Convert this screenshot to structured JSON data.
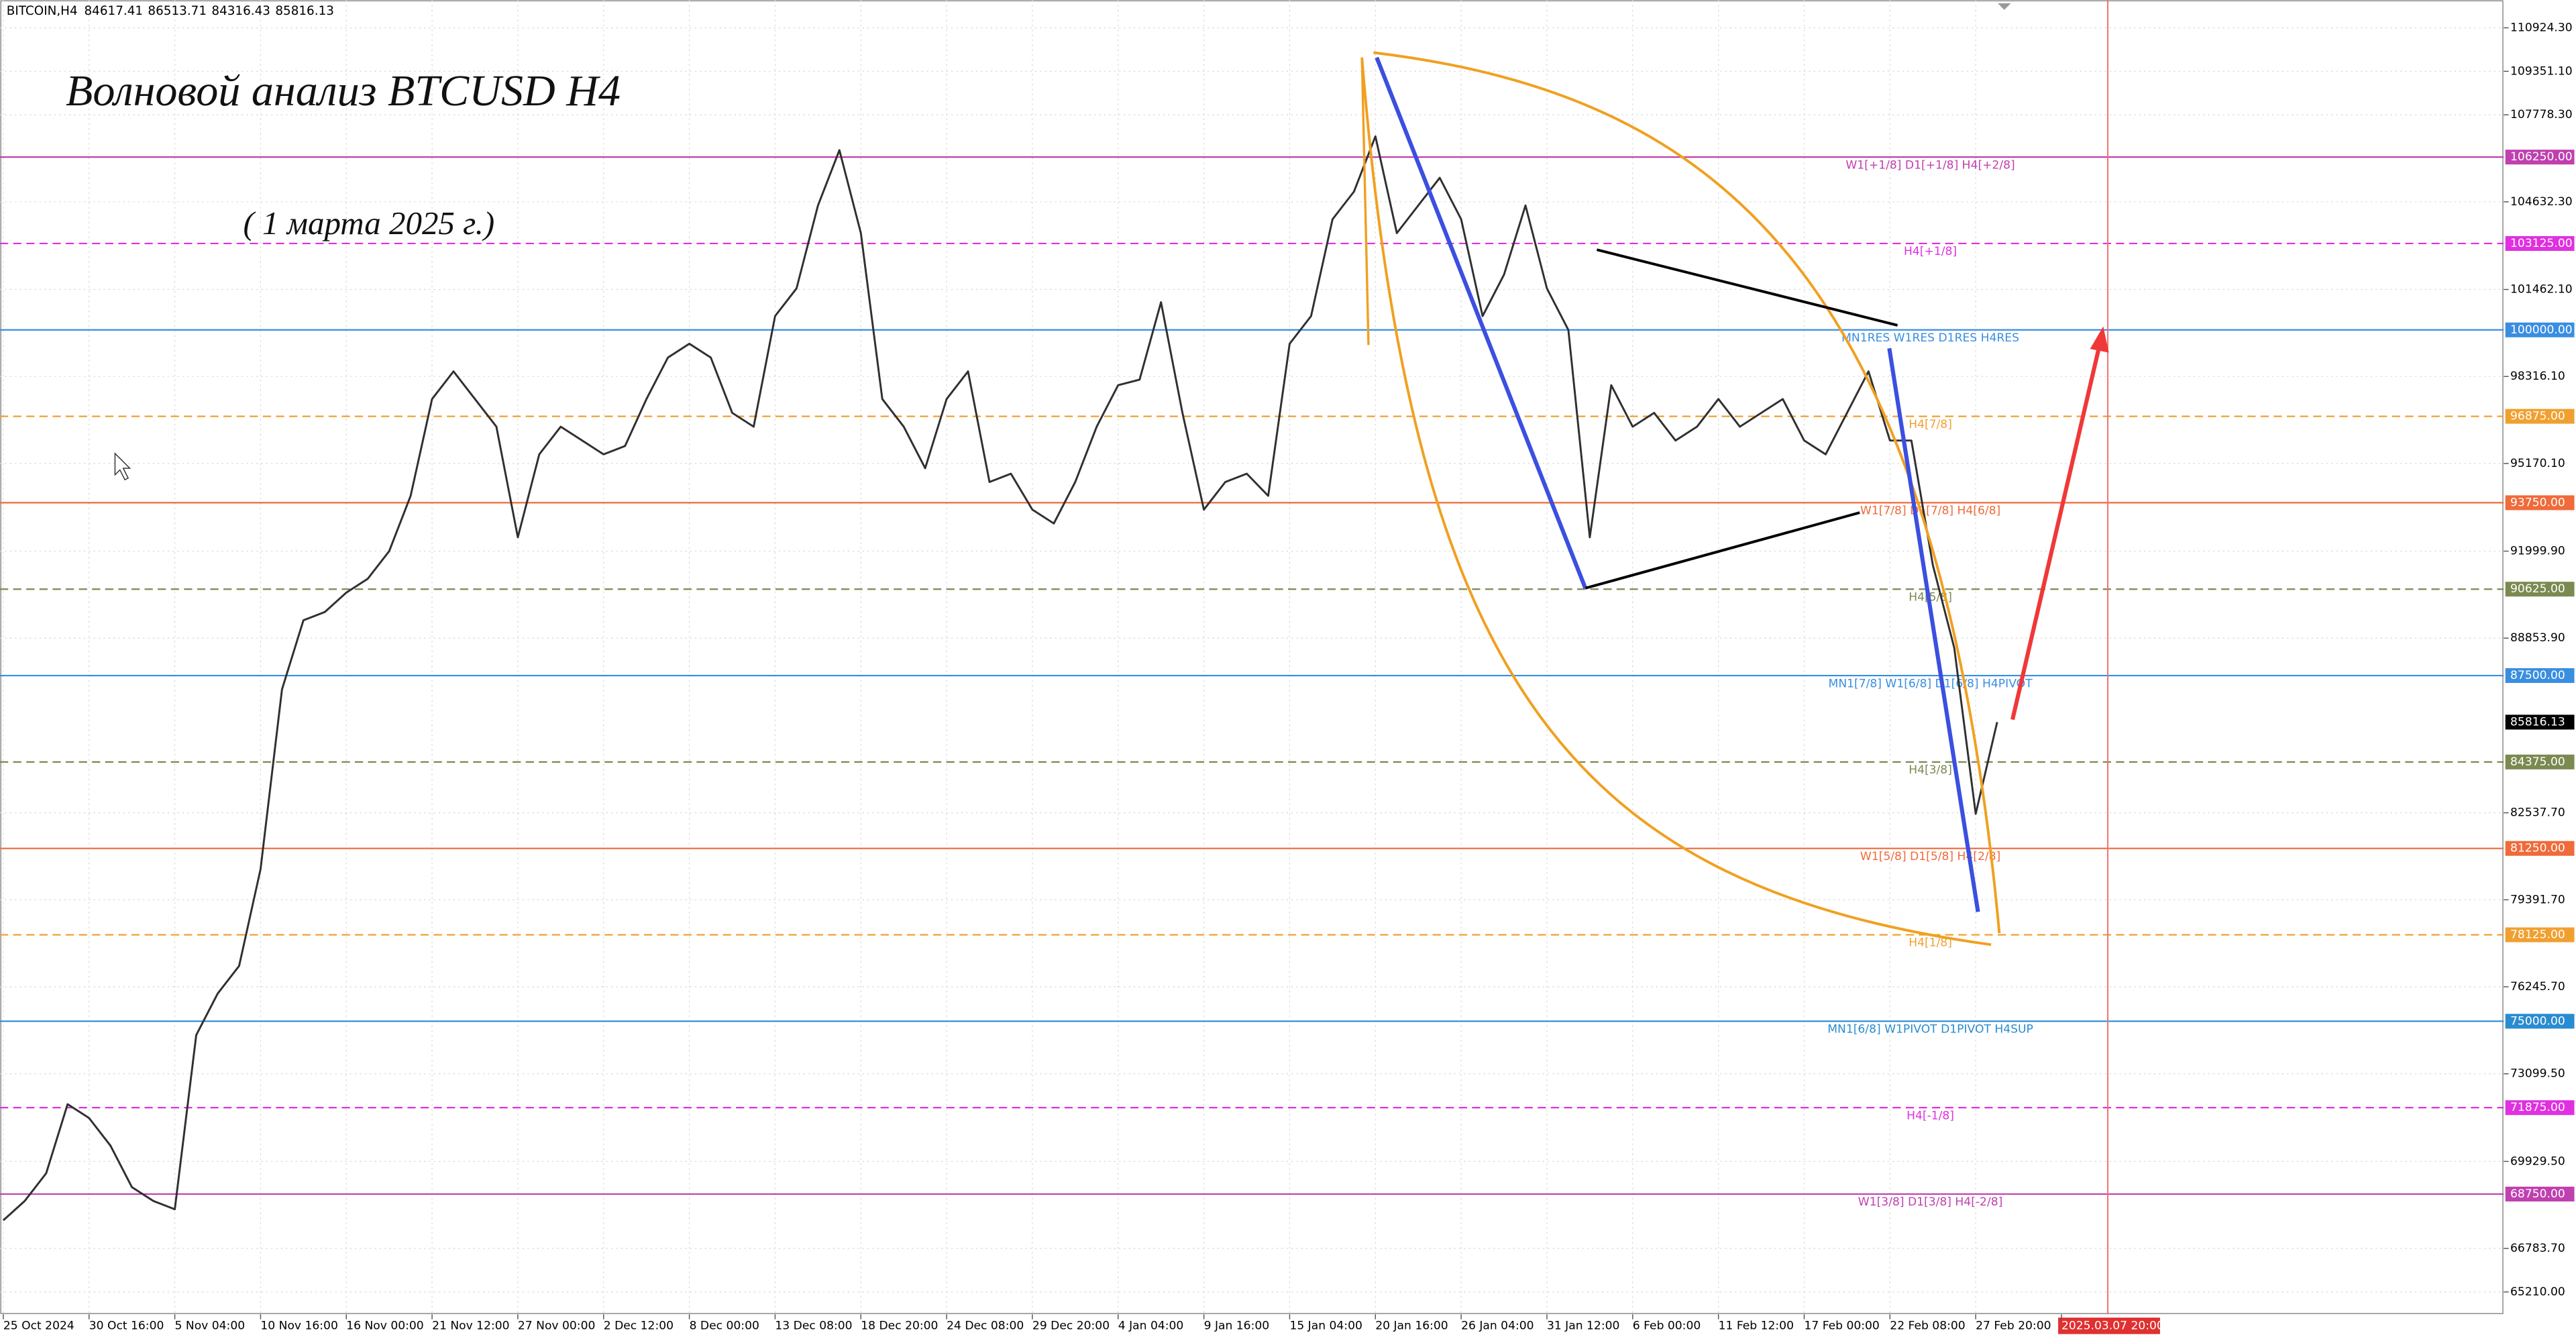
{
  "header": {
    "symbol": "BITCOIN,H4",
    "ohlc": [
      84617.41,
      86513.71,
      84316.43,
      85816.13
    ]
  },
  "chart_data": {
    "type": "line",
    "title": "Волновой анализ BTCUSD H4",
    "subtitle": "( 1 марта 2025 г.)",
    "categories": [
      "25 Oct 2024",
      null,
      null,
      null,
      "30 Oct 16:00",
      null,
      null,
      null,
      "5 Nov 04:00",
      null,
      null,
      null,
      "10 Nov 16:00",
      null,
      null,
      null,
      "16 Nov 00:00",
      null,
      null,
      null,
      "21 Nov 12:00",
      null,
      null,
      null,
      "27 Nov 00:00",
      null,
      null,
      null,
      "2 Dec 12:00",
      null,
      null,
      null,
      "8 Dec 00:00",
      null,
      null,
      null,
      "13 Dec 08:00",
      null,
      null,
      null,
      "18 Dec 20:00",
      null,
      null,
      null,
      "24 Dec 08:00",
      null,
      null,
      null,
      "29 Dec 20:00",
      null,
      null,
      null,
      "4 Jan 04:00",
      null,
      null,
      null,
      "9 Jan 16:00",
      null,
      null,
      null,
      "15 Jan 04:00",
      null,
      null,
      null,
      "20 Jan 16:00",
      null,
      null,
      null,
      "26 Jan 04:00",
      null,
      null,
      null,
      "31 Jan 12:00",
      null,
      null,
      null,
      "6 Feb 00:00",
      null,
      null,
      null,
      "11 Feb 12:00",
      null,
      null,
      null,
      "17 Feb 00:00",
      null,
      null,
      null,
      "22 Feb 08:00",
      null,
      null,
      null,
      "27 Feb 20:00",
      null,
      null,
      null,
      "2025.03.07 20:00"
    ],
    "values": [
      67800,
      68500,
      69500,
      72000,
      71500,
      70500,
      69000,
      68500,
      68200,
      74500,
      76000,
      77000,
      80500,
      87000,
      89500,
      89800,
      90500,
      91000,
      92000,
      94000,
      97500,
      98500,
      97500,
      96500,
      92500,
      95500,
      96500,
      96000,
      95500,
      95800,
      97500,
      99000,
      99500,
      99000,
      97000,
      96500,
      100500,
      101500,
      104500,
      106500,
      103500,
      97500,
      96500,
      95000,
      97500,
      98500,
      94500,
      94800,
      93500,
      93000,
      94500,
      96500,
      98000,
      98200,
      101000,
      97000,
      93500,
      94500,
      94800,
      94000,
      99500,
      100500,
      104000,
      105000,
      107000,
      103500,
      104500,
      105500,
      104000,
      100500,
      102000,
      104500,
      101500,
      100000,
      92500,
      98000,
      96500,
      97000,
      96000,
      96500,
      97500,
      96500,
      97000,
      97500,
      96000,
      95500,
      97000,
      98500,
      96000,
      96000,
      91500,
      88500,
      82500,
      85816.13,
      null,
      null,
      null
    ],
    "color": "#303030",
    "ylim": [
      64400,
      111930
    ],
    "yticks": [
      {
        "value": 110924.3,
        "label": "110924.30"
      },
      {
        "value": 109351.1,
        "label": "109351.10"
      },
      {
        "value": 107778.3,
        "label": "107778.30"
      },
      {
        "value": 104632.3,
        "label": "104632.30"
      },
      {
        "value": 101462.1,
        "label": "101462.10"
      },
      {
        "value": 98316.1,
        "label": "98316.10"
      },
      {
        "value": 95170.1,
        "label": "95170.10"
      },
      {
        "value": 91999.9,
        "label": "91999.90"
      },
      {
        "value": 88853.9,
        "label": "88853.90"
      },
      {
        "value": 82537.7,
        "label": "82537.70"
      },
      {
        "value": 79391.7,
        "label": "79391.70"
      },
      {
        "value": 76245.7,
        "label": "76245.70"
      },
      {
        "value": 73099.5,
        "label": "73099.50"
      },
      {
        "value": 69929.5,
        "label": "69929.50"
      },
      {
        "value": 66783.7,
        "label": "66783.70"
      },
      {
        "value": 65210,
        "label": "65210.00"
      }
    ],
    "grid": true,
    "levels": [
      {
        "value": 106250,
        "price_label": "106250.00",
        "label": "W1[+1/8] D1[+1/8] H4[+2/8]",
        "color": "#c040b0",
        "style": "solid"
      },
      {
        "value": 103125,
        "price_label": "103125.00",
        "label": "H4[+1/8]",
        "color": "#e030e0",
        "style": "dashed"
      },
      {
        "value": 100000,
        "price_label": "100000.00",
        "label": "MN1RES W1RES D1RES H4RES",
        "color": "#3a8ee0",
        "style": "solid"
      },
      {
        "value": 96875,
        "price_label": "96875.00",
        "label": "H4[7/8]",
        "color": "#f0a030",
        "style": "dashed"
      },
      {
        "value": 93750,
        "price_label": "93750.00",
        "label": "W1[7/8] D1[7/8] H4[6/8]",
        "color": "#f06a3a",
        "style": "solid"
      },
      {
        "value": 90625,
        "price_label": "90625.00",
        "label": "H4[5/8]",
        "color": "#7a8a50",
        "style": "dashed"
      },
      {
        "value": 87500,
        "price_label": "87500.00",
        "label": "MN1[7/8] W1[6/8] D1[6/8] H4PIVOT",
        "color": "#3a8ee0",
        "style": "solid"
      },
      {
        "value": 84375,
        "price_label": "84375.00",
        "label": "H4[3/8]",
        "color": "#7a8a50",
        "style": "dashed"
      },
      {
        "value": 81250,
        "price_label": "81250.00",
        "label": "W1[5/8] D1[5/8] H4[2/8]",
        "color": "#f06a3a",
        "style": "solid"
      },
      {
        "value": 78125,
        "price_label": "78125.00",
        "label": "H4[1/8]",
        "color": "#f0a030",
        "style": "dashed"
      },
      {
        "value": 75000,
        "price_label": "75000.00",
        "label": "MN1[6/8] W1PIVOT D1PIVOT H4SUP",
        "color": "#2a8cd0",
        "style": "solid"
      },
      {
        "value": 71875,
        "price_label": "71875.00",
        "label": "H4[-1/8]",
        "color": "#e030e0",
        "style": "dashed"
      },
      {
        "value": 68750,
        "price_label": "68750.00",
        "label": "W1[3/8] D1[3/8] H4[-2/8]",
        "color": "#c040b0",
        "style": "solid"
      }
    ],
    "last_price": 85816.13
  }
}
